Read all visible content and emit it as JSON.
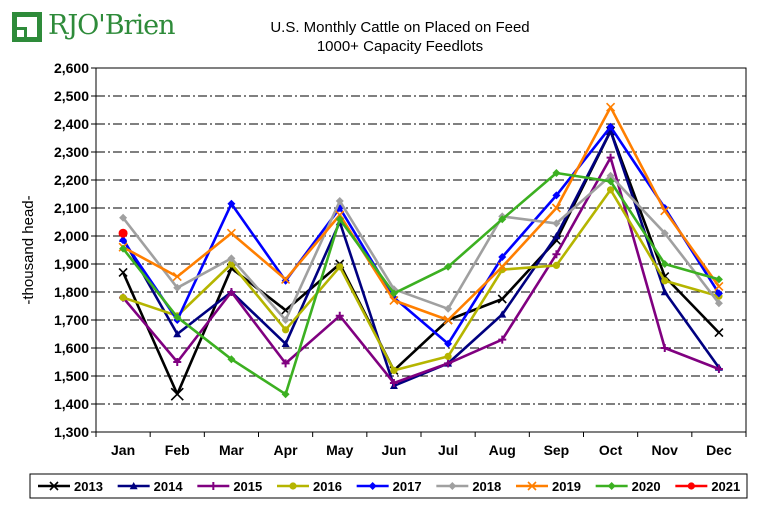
{
  "logo": {
    "text": "RJO'Brien",
    "color": "#2e8b3a"
  },
  "chart_data": {
    "type": "line",
    "title": "U.S. Monthly Cattle on Placed on Feed",
    "subtitle": "1000+ Capacity Feedlots",
    "xlabel": "",
    "ylabel": "-thousand head-",
    "ylim": [
      1300,
      2600
    ],
    "ytick_step": 100,
    "yticks": [
      "1,300",
      "1,400",
      "1,500",
      "1,600",
      "1,700",
      "1,800",
      "1,900",
      "2,000",
      "2,100",
      "2,200",
      "2,300",
      "2,400",
      "2,500",
      "2,600"
    ],
    "grid": "horizontal dashed",
    "legend": "bottom",
    "categories": [
      "Jan",
      "Feb",
      "Mar",
      "Apr",
      "May",
      "Jun",
      "Jul",
      "Aug",
      "Sep",
      "Oct",
      "Nov",
      "Dec"
    ],
    "series": [
      {
        "name": "2013",
        "color": "#000000",
        "marker": "x",
        "values": [
          1870,
          1435,
          1885,
          1735,
          1900,
          1520,
          1700,
          1775,
          1985,
          2375,
          1855,
          1655
        ]
      },
      {
        "name": "2014",
        "color": "#000080",
        "marker": "triangle",
        "values": [
          1990,
          1650,
          1800,
          1615,
          2050,
          1465,
          1545,
          1720,
          2000,
          2375,
          1800,
          1530
        ]
      },
      {
        "name": "2015",
        "color": "#800080",
        "marker": "plus",
        "values": [
          1780,
          1550,
          1800,
          1545,
          1715,
          1475,
          1545,
          1630,
          1935,
          2280,
          1600,
          1525
        ]
      },
      {
        "name": "2016",
        "color": "#b5b500",
        "marker": "circle",
        "values": [
          1780,
          1715,
          1900,
          1665,
          1890,
          1520,
          1570,
          1880,
          1895,
          2165,
          1840,
          1785
        ]
      },
      {
        "name": "2017",
        "color": "#0000ff",
        "marker": "diamond",
        "values": [
          1985,
          1700,
          2115,
          1840,
          2100,
          1780,
          1615,
          1925,
          2145,
          2390,
          2100,
          1795
        ]
      },
      {
        "name": "2018",
        "color": "#a0a0a0",
        "marker": "diamond",
        "values": [
          2065,
          1815,
          1920,
          1700,
          2125,
          1810,
          1740,
          2070,
          2045,
          2215,
          2010,
          1760
        ]
      },
      {
        "name": "2019",
        "color": "#ff7f00",
        "marker": "x",
        "values": [
          1960,
          1855,
          2010,
          1845,
          2075,
          1770,
          1700,
          1890,
          2100,
          2460,
          2090,
          1820
        ]
      },
      {
        "name": "2020",
        "color": "#3cb021",
        "marker": "diamond",
        "values": [
          1955,
          1710,
          1560,
          1435,
          2060,
          1795,
          1890,
          2060,
          2225,
          2195,
          1900,
          1845
        ]
      },
      {
        "name": "2021",
        "color": "#ff0000",
        "marker": "circle",
        "values": [
          2010,
          null,
          null,
          null,
          null,
          null,
          null,
          null,
          null,
          null,
          null,
          null
        ]
      }
    ]
  }
}
